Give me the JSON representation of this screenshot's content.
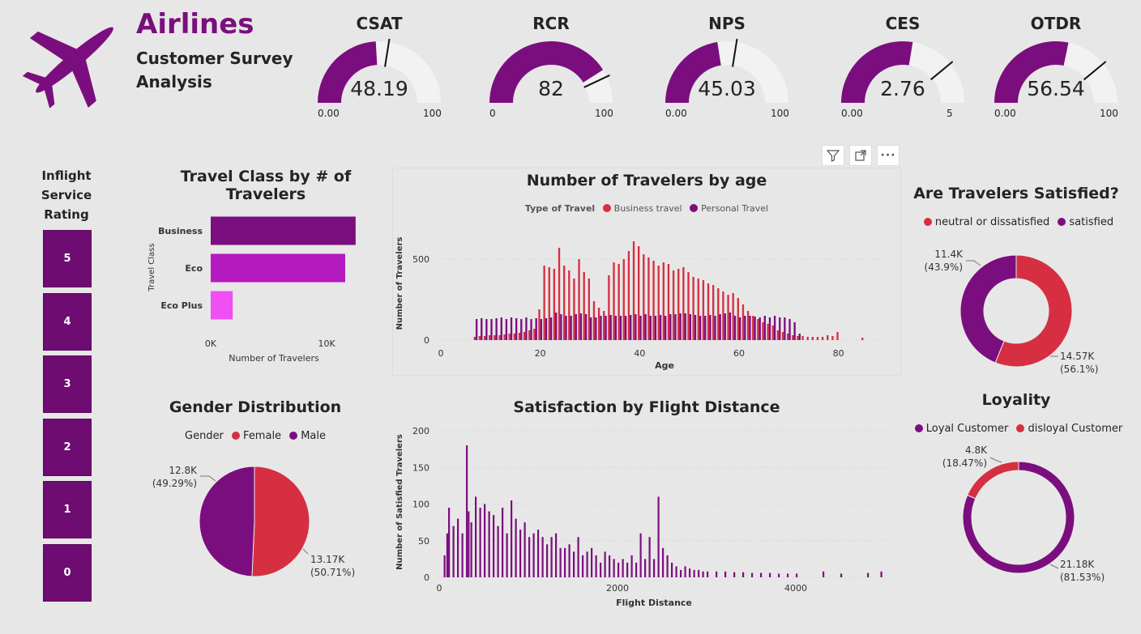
{
  "header": {
    "title": "Airlines",
    "subtitle": "Customer Survey Analysis"
  },
  "colors": {
    "purple": "#7b0e7e",
    "red": "#d62f42",
    "magenta": "#b519c0",
    "pink": "#f04ff3",
    "track": "#f2f2f2"
  },
  "icons": {
    "logo": "airplane-icon",
    "filter": "filter-icon",
    "focus": "focus-mode-icon",
    "more": "more-options-icon"
  },
  "gauges": [
    {
      "name": "CSAT",
      "value": 48.19,
      "display": "48.19",
      "min": 0,
      "max": 100,
      "min_label": "0.00",
      "max_label": "100",
      "target": 0.55
    },
    {
      "name": "RCR",
      "value": 82,
      "display": "82",
      "min": 0,
      "max": 100,
      "min_label": "0",
      "max_label": "100",
      "target": 0.86
    },
    {
      "name": "NPS",
      "value": 45.03,
      "display": "45.03",
      "min": 0,
      "max": 100,
      "min_label": "0.00",
      "max_label": "100",
      "target": 0.55
    },
    {
      "name": "CES",
      "value": 2.76,
      "display": "2.76",
      "min": 0,
      "max": 5,
      "min_label": "0.00",
      "max_label": "5",
      "target": 0.78
    },
    {
      "name": "OTDR",
      "value": 56.54,
      "display": "56.54",
      "min": 0,
      "max": 100,
      "min_label": "0.00",
      "max_label": "100",
      "target": 0.78
    }
  ],
  "rating_slicer": {
    "title": "Inflight Service Rating",
    "items": [
      "5",
      "4",
      "3",
      "2",
      "1",
      "0"
    ]
  },
  "chart_data": [
    {
      "id": "travel_class",
      "type": "bar",
      "orientation": "horizontal",
      "title": "Travel Class by # of Travelers",
      "ylabel": "Travel Class",
      "xlabel": "Number of Travelers",
      "categories": [
        "Business",
        "Eco",
        "Eco Plus"
      ],
      "values": [
        12500,
        11600,
        1900
      ],
      "colors": [
        "#7b0e7e",
        "#b519c0",
        "#f04ff3"
      ],
      "xlim": [
        0,
        13000
      ],
      "xticks": [
        {
          "value": 0,
          "label": "0K"
        },
        {
          "value": 10000,
          "label": "10K"
        }
      ]
    },
    {
      "id": "travelers_by_age",
      "type": "bar",
      "title": "Number of Travelers by age",
      "legend_title": "Type of Travel",
      "xlabel": "Age",
      "ylabel": "Number of Travelers",
      "xlim": [
        0,
        90
      ],
      "ylim": [
        0,
        700
      ],
      "xticks": [
        0,
        20,
        40,
        60,
        80
      ],
      "yticks": [
        0,
        500
      ],
      "series": [
        {
          "name": "Business travel",
          "color": "#d62f42",
          "x": [
            7,
            8,
            9,
            10,
            11,
            12,
            13,
            14,
            15,
            16,
            17,
            18,
            19,
            20,
            21,
            22,
            23,
            24,
            25,
            26,
            27,
            28,
            29,
            30,
            31,
            32,
            33,
            34,
            35,
            36,
            37,
            38,
            39,
            40,
            41,
            42,
            43,
            44,
            45,
            46,
            47,
            48,
            49,
            50,
            51,
            52,
            53,
            54,
            55,
            56,
            57,
            58,
            59,
            60,
            61,
            62,
            63,
            64,
            65,
            66,
            67,
            68,
            69,
            70,
            71,
            72,
            73,
            74,
            75,
            76,
            77,
            78,
            79,
            80,
            85
          ],
          "values": [
            20,
            25,
            25,
            30,
            30,
            30,
            35,
            40,
            40,
            45,
            50,
            60,
            70,
            190,
            460,
            450,
            440,
            570,
            460,
            430,
            380,
            500,
            420,
            380,
            240,
            200,
            180,
            400,
            480,
            470,
            500,
            550,
            610,
            580,
            530,
            510,
            490,
            460,
            480,
            470,
            430,
            440,
            450,
            420,
            390,
            380,
            370,
            350,
            340,
            320,
            300,
            280,
            290,
            260,
            220,
            180,
            150,
            130,
            110,
            100,
            90,
            60,
            50,
            40,
            30,
            25,
            25,
            20,
            20,
            20,
            20,
            30,
            25,
            50,
            15
          ]
        },
        {
          "name": "Personal Travel",
          "color": "#7b0e7e",
          "x": [
            7,
            8,
            9,
            10,
            11,
            12,
            13,
            14,
            15,
            16,
            17,
            18,
            19,
            20,
            21,
            22,
            23,
            24,
            25,
            26,
            27,
            28,
            29,
            30,
            31,
            32,
            33,
            34,
            35,
            36,
            37,
            38,
            39,
            40,
            41,
            42,
            43,
            44,
            45,
            46,
            47,
            48,
            49,
            50,
            51,
            52,
            53,
            54,
            55,
            56,
            57,
            58,
            59,
            60,
            61,
            62,
            63,
            64,
            65,
            66,
            67,
            68,
            69,
            70,
            71,
            72
          ],
          "values": [
            130,
            135,
            130,
            130,
            135,
            140,
            130,
            140,
            135,
            130,
            140,
            130,
            135,
            130,
            135,
            140,
            170,
            160,
            150,
            150,
            160,
            165,
            160,
            140,
            140,
            150,
            150,
            155,
            150,
            150,
            150,
            155,
            160,
            150,
            160,
            150,
            150,
            155,
            150,
            160,
            160,
            165,
            165,
            160,
            155,
            150,
            150,
            155,
            150,
            160,
            165,
            170,
            150,
            140,
            150,
            150,
            145,
            140,
            150,
            140,
            150,
            140,
            140,
            130,
            110,
            40
          ]
        }
      ]
    },
    {
      "id": "satisfied",
      "type": "pie",
      "variant": "donut",
      "title": "Are Travelers Satisfied?",
      "slices": [
        {
          "name": "neutral or dissatisfied",
          "value": 14570,
          "label": "14.57K",
          "pct_label": "(56.1%)",
          "color": "#d62f42"
        },
        {
          "name": "satisfied",
          "value": 11400,
          "label": "11.4K",
          "pct_label": "(43.9%)",
          "color": "#7b0e7e"
        }
      ]
    },
    {
      "id": "gender",
      "type": "pie",
      "title": "Gender Distribution",
      "legend_title": "Gender",
      "slices": [
        {
          "name": "Female",
          "value": 13170,
          "label": "13.17K",
          "pct_label": "(50.71%)",
          "color": "#d62f42"
        },
        {
          "name": "Male",
          "value": 12800,
          "label": "12.8K",
          "pct_label": "(49.29%)",
          "color": "#7b0e7e"
        }
      ]
    },
    {
      "id": "distance",
      "type": "bar",
      "title": "Satisfaction by Flight Distance",
      "xlabel": "Flight Distance",
      "ylabel": "Number of Satisfied Travelers",
      "xlim": [
        0,
        5000
      ],
      "ylim": [
        0,
        200
      ],
      "xticks": [
        0,
        2000,
        4000
      ],
      "yticks": [
        0,
        50,
        100,
        150,
        200
      ],
      "series": [
        {
          "name": "Satisfied",
          "color": "#7b0e7e",
          "x": [
            50,
            80,
            100,
            150,
            200,
            250,
            300,
            320,
            350,
            400,
            450,
            500,
            550,
            600,
            650,
            700,
            750,
            800,
            850,
            900,
            950,
            1000,
            1050,
            1100,
            1150,
            1200,
            1250,
            1300,
            1350,
            1400,
            1450,
            1500,
            1550,
            1600,
            1650,
            1700,
            1750,
            1800,
            1850,
            1900,
            1950,
            2000,
            2050,
            2100,
            2150,
            2200,
            2250,
            2300,
            2350,
            2400,
            2450,
            2500,
            2550,
            2600,
            2650,
            2700,
            2750,
            2800,
            2850,
            2900,
            2950,
            3000,
            3100,
            3200,
            3300,
            3400,
            3500,
            3600,
            3700,
            3800,
            3900,
            4000,
            4300,
            4500,
            4800,
            4950
          ],
          "values": [
            30,
            60,
            95,
            70,
            80,
            60,
            180,
            90,
            75,
            110,
            95,
            100,
            90,
            85,
            70,
            95,
            60,
            105,
            80,
            65,
            75,
            55,
            60,
            65,
            55,
            45,
            55,
            60,
            40,
            40,
            45,
            35,
            55,
            30,
            35,
            40,
            30,
            20,
            35,
            30,
            25,
            20,
            25,
            20,
            30,
            20,
            60,
            25,
            55,
            25,
            110,
            40,
            30,
            20,
            15,
            10,
            15,
            12,
            10,
            10,
            8,
            8,
            8,
            8,
            7,
            7,
            6,
            6,
            6,
            5,
            5,
            5,
            8,
            5,
            6,
            8
          ]
        }
      ]
    },
    {
      "id": "loyalty",
      "type": "pie",
      "variant": "donut",
      "title": "Loyality",
      "slices": [
        {
          "name": "Loyal Customer",
          "value": 21180,
          "label": "21.18K",
          "pct_label": "(81.53%)",
          "color": "#7b0e7e"
        },
        {
          "name": "disloyal Customer",
          "value": 4800,
          "label": "4.8K",
          "pct_label": "(18.47%)",
          "color": "#d62f42"
        }
      ]
    }
  ]
}
